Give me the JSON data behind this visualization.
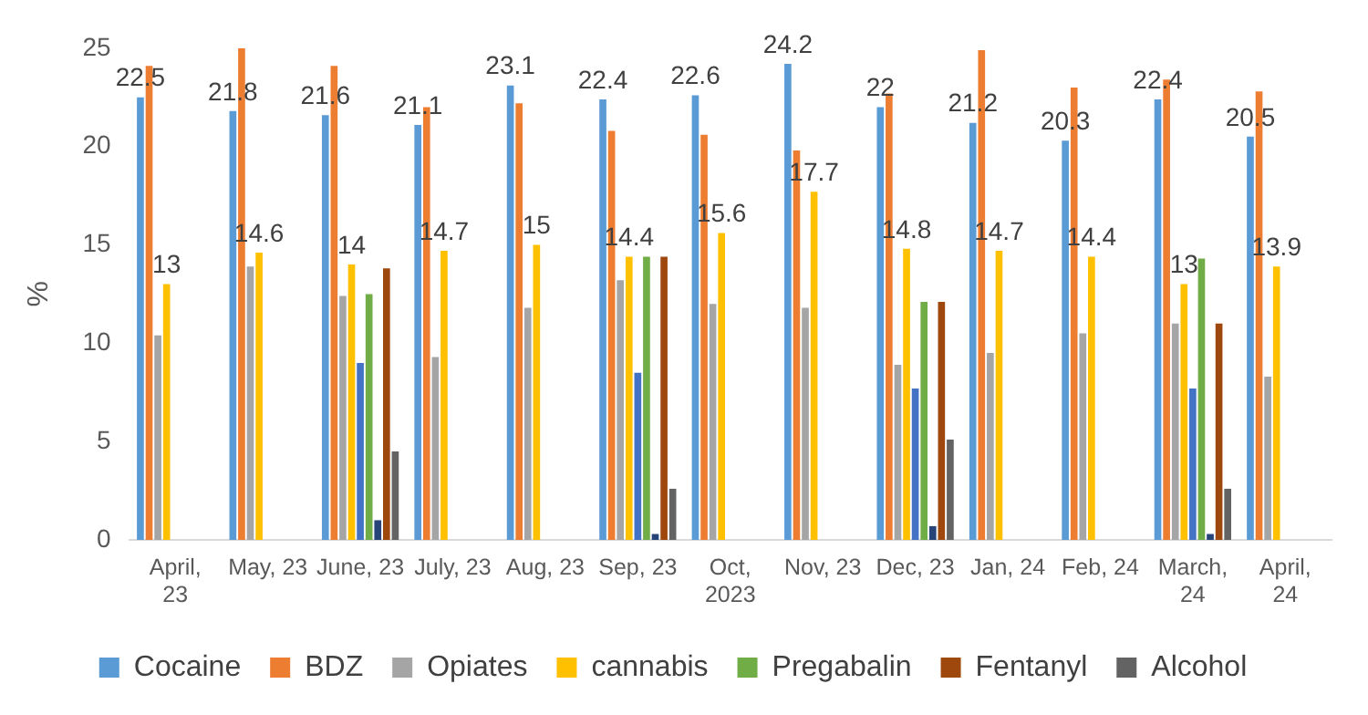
{
  "chart_data": {
    "type": "bar",
    "ylabel": "%",
    "categories": [
      "April, 23",
      "May, 23",
      "June, 23",
      "July, 23",
      "Aug, 23",
      "Sep, 23",
      "Oct, 2023",
      "Nov, 23",
      "Dec, 23",
      "Jan, 24",
      "Feb, 24",
      "March, 24",
      "April, 24"
    ],
    "series": [
      {
        "name": "Cocaine",
        "color": "#5b9bd5",
        "values": [
          22.5,
          21.8,
          21.6,
          21.1,
          23.1,
          22.4,
          22.6,
          24.2,
          22,
          21.2,
          20.3,
          22.4,
          20.5
        ],
        "value_labels": [
          "22.5",
          "21.8",
          "21.6",
          "21.1",
          "23.1",
          "22.4",
          "22.6",
          "24.2",
          "22",
          "21.2",
          "20.3",
          "22.4",
          "20.5"
        ]
      },
      {
        "name": "BDZ",
        "color": "#ed7d31",
        "values": [
          24.1,
          25.0,
          24.1,
          22.0,
          22.2,
          20.8,
          20.6,
          19.8,
          22.7,
          24.9,
          23.0,
          23.4,
          22.8
        ]
      },
      {
        "name": "Opiates",
        "color": "#a5a5a5",
        "values": [
          10.4,
          13.9,
          12.4,
          9.3,
          11.8,
          13.2,
          12.0,
          11.8,
          8.9,
          9.5,
          10.5,
          11.0,
          8.3
        ]
      },
      {
        "name": "cannabis",
        "color": "#ffc000",
        "values": [
          13,
          14.6,
          14,
          14.7,
          15,
          14.4,
          15.6,
          17.7,
          14.8,
          14.7,
          14.4,
          13,
          13.9
        ],
        "value_labels": [
          "13",
          "14.6",
          "14",
          "14.7",
          "15",
          "14.4",
          "15.6",
          "17.7",
          "14.8",
          "14.7",
          "14.4",
          "13",
          "13.9"
        ]
      },
      {
        "color": "#4472c4",
        "values": [
          null,
          null,
          9.0,
          null,
          null,
          8.5,
          null,
          null,
          7.7,
          null,
          null,
          7.7,
          null
        ]
      },
      {
        "name": "Pregabalin",
        "color": "#70ad47",
        "values": [
          null,
          null,
          12.5,
          null,
          null,
          14.4,
          null,
          null,
          12.1,
          null,
          null,
          14.3,
          null
        ]
      },
      {
        "color": "#264478",
        "values": [
          null,
          null,
          1.0,
          null,
          null,
          0.3,
          null,
          null,
          0.7,
          null,
          null,
          0.3,
          null
        ]
      },
      {
        "name": "Fentanyl",
        "color": "#9e480e",
        "values": [
          null,
          null,
          13.8,
          null,
          null,
          14.4,
          null,
          null,
          12.1,
          null,
          null,
          11.0,
          null
        ]
      },
      {
        "name": "Alcohol",
        "color": "#636363",
        "values": [
          null,
          null,
          4.5,
          null,
          null,
          2.6,
          null,
          null,
          5.1,
          null,
          null,
          2.6,
          null
        ]
      }
    ],
    "ylim": [
      0,
      25
    ],
    "yticks": [
      0,
      5,
      10,
      15,
      20,
      25
    ],
    "grid": false,
    "legend": "bottom"
  }
}
